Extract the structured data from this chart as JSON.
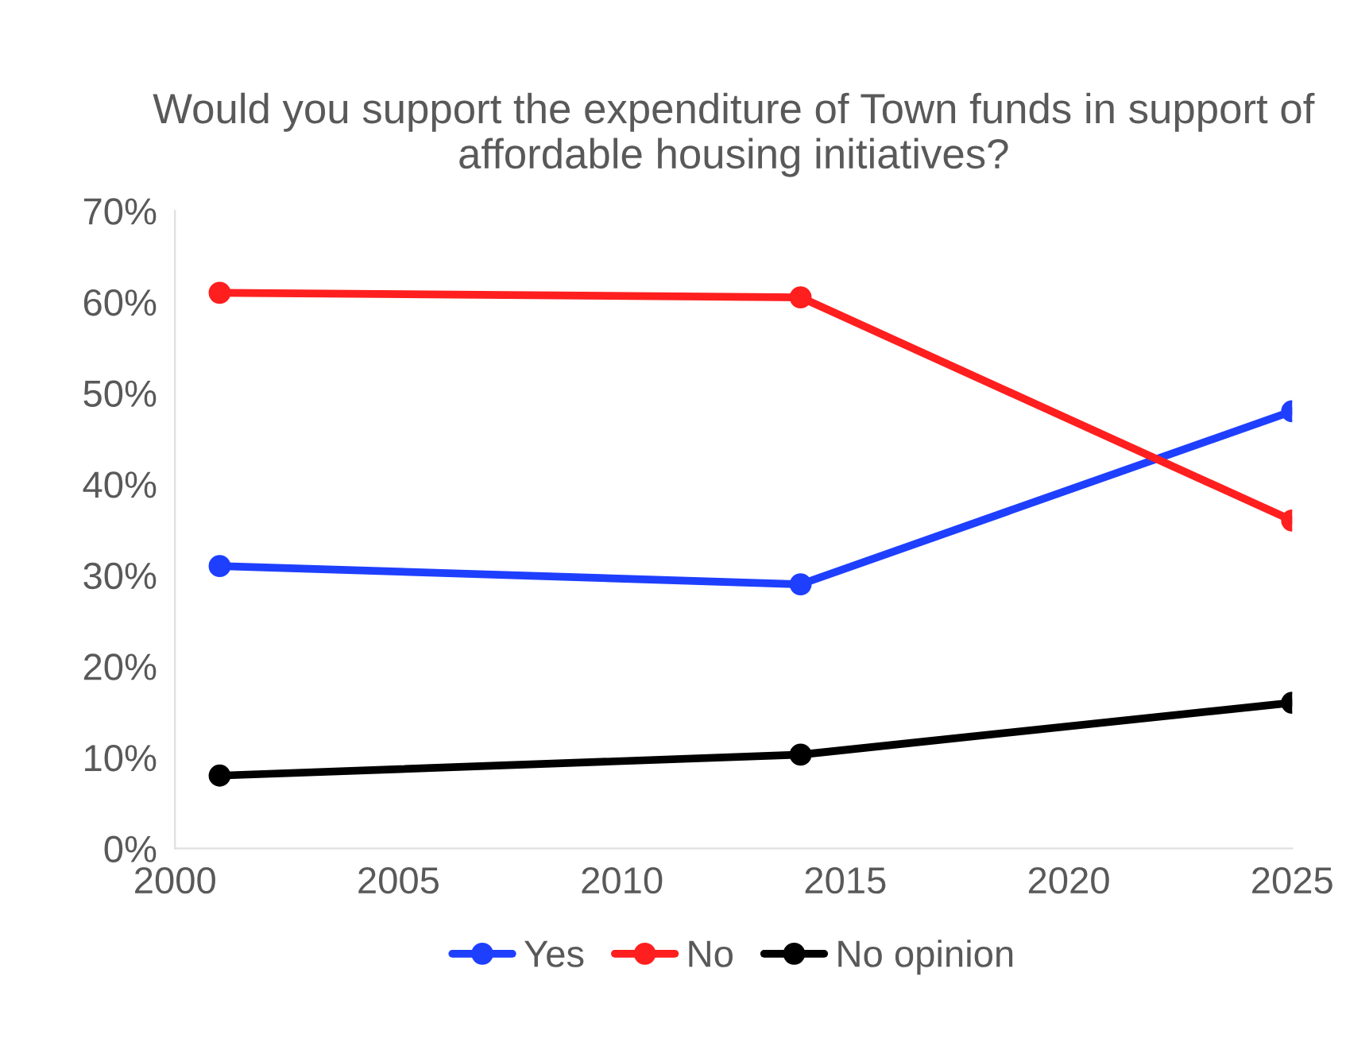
{
  "chart_data": {
    "type": "line",
    "title": "Would you support the expenditure of Town funds in support of affordable housing initiatives?",
    "x": [
      2001,
      2014,
      2025
    ],
    "series": [
      {
        "name": "Yes",
        "color": "#1f3fff",
        "values": [
          31,
          29,
          48
        ]
      },
      {
        "name": "No",
        "color": "#ff1f1f",
        "values": [
          61,
          60.5,
          36
        ]
      },
      {
        "name": "No opinion",
        "color": "#000000",
        "values": [
          8,
          10.3,
          16
        ]
      }
    ],
    "xlim": [
      2000,
      2025
    ],
    "xticks": [
      2000,
      2005,
      2010,
      2015,
      2020,
      2025
    ],
    "ylim": [
      0,
      70
    ],
    "yticks": [
      {
        "value": 0,
        "label": "0%"
      },
      {
        "value": 10,
        "label": "10%"
      },
      {
        "value": 20,
        "label": "20%"
      },
      {
        "value": 30,
        "label": "30%"
      },
      {
        "value": 40,
        "label": "40%"
      },
      {
        "value": 50,
        "label": "50%"
      },
      {
        "value": 60,
        "label": "60%"
      },
      {
        "value": 70,
        "label": "70%"
      }
    ],
    "marker": "circle",
    "line_style": "solid",
    "legend": "bottom",
    "grid": false
  }
}
